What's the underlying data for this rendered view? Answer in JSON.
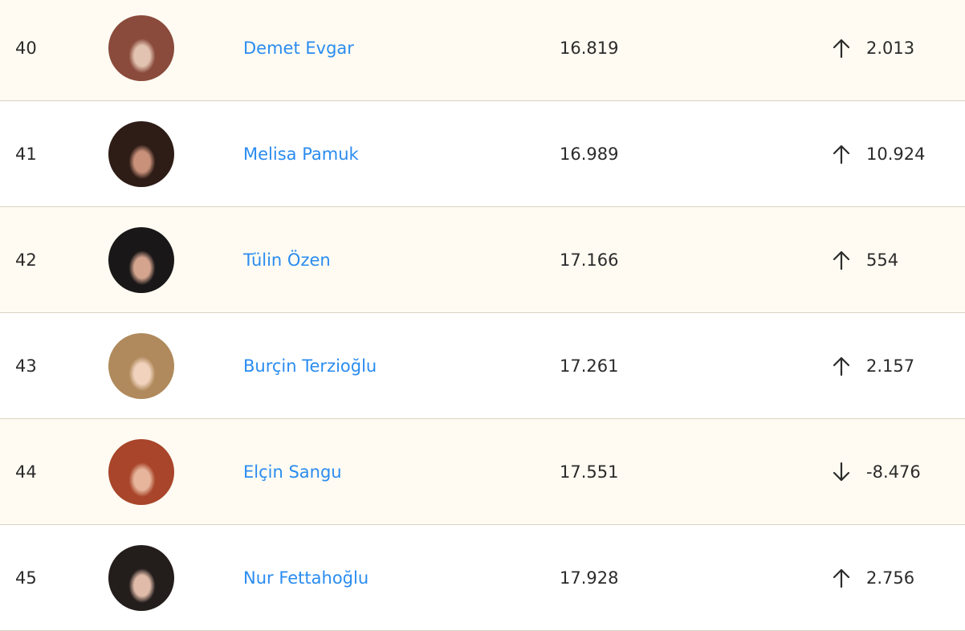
{
  "rows": [
    {
      "rank": "40",
      "name": "Demet Evgar",
      "score": "16.819",
      "direction": "up",
      "change": "2.013",
      "avatar_colors": [
        "#8a4b3c",
        "#e2c2b0"
      ]
    },
    {
      "rank": "41",
      "name": "Melisa Pamuk",
      "score": "16.989",
      "direction": "up",
      "change": "10.924",
      "avatar_colors": [
        "#2e1c16",
        "#c9917a"
      ]
    },
    {
      "rank": "42",
      "name": "Tülin Özen",
      "score": "17.166",
      "direction": "up",
      "change": "554",
      "avatar_colors": [
        "#1a1718",
        "#d4a48e"
      ]
    },
    {
      "rank": "43",
      "name": "Burçin Terzioğlu",
      "score": "17.261",
      "direction": "up",
      "change": "2.157",
      "avatar_colors": [
        "#b08a5c",
        "#f0d2bd"
      ]
    },
    {
      "rank": "44",
      "name": "Elçin Sangu",
      "score": "17.551",
      "direction": "down",
      "change": "-8.476",
      "avatar_colors": [
        "#a8452a",
        "#e6b59c"
      ]
    },
    {
      "rank": "45",
      "name": "Nur Fettahoğlu",
      "score": "17.928",
      "direction": "up",
      "change": "2.756",
      "avatar_colors": [
        "#231d1c",
        "#e1bba9"
      ]
    }
  ],
  "colors": {
    "name_link": "#2a8cf0",
    "alt_row": "#fffbf2",
    "divider": "#d9d3c3"
  }
}
